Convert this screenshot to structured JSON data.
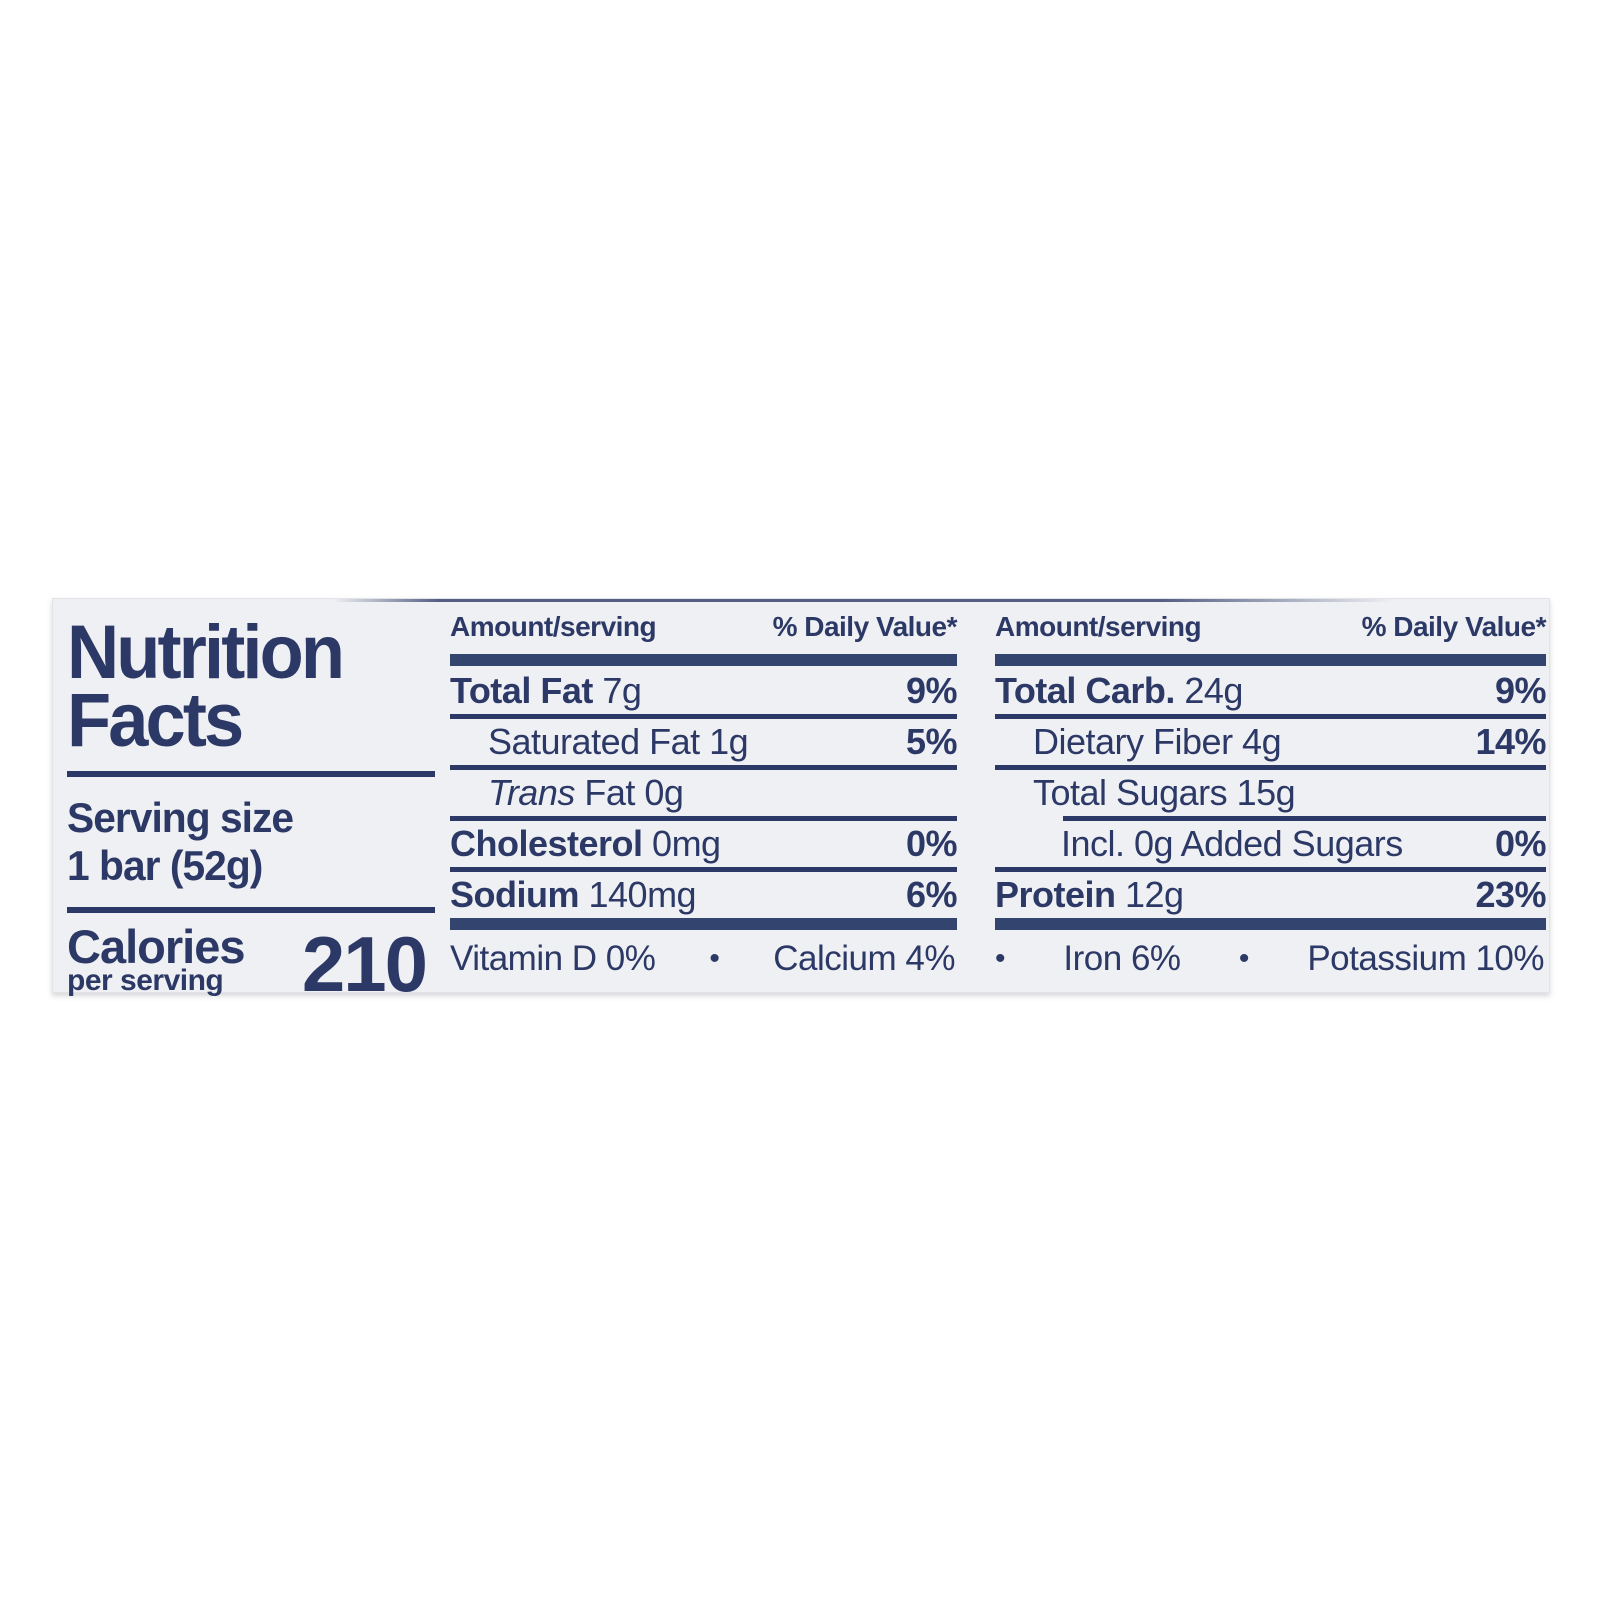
{
  "colors": {
    "text_navy": "#2c3966",
    "bar_navy": "#33456f",
    "panel_bg": "#eff0f3"
  },
  "left": {
    "title_line1": "Nutrition",
    "title_line2": "Facts",
    "serving_size_label": "Serving size",
    "serving_size_value": "1 bar (52g)",
    "calories_label": "Calories",
    "calories_sublabel": "per serving",
    "calories_value": "210"
  },
  "middle": {
    "header": {
      "amount": "Amount/serving",
      "dv": "% Daily Value*"
    },
    "rows": [
      {
        "bold": "Total Fat",
        "text": " 7g",
        "dv": "9%",
        "indent": 0
      },
      {
        "text": "Saturated Fat 1g",
        "dv": "5%",
        "indent": 1
      },
      {
        "italic": "Trans",
        "text": " Fat 0g",
        "dv": "",
        "indent": 1
      },
      {
        "bold": "Cholesterol",
        "text": " 0mg",
        "dv": "0%",
        "indent": 0
      },
      {
        "bold": "Sodium",
        "text": " 140mg",
        "dv": "6%",
        "indent": 0
      }
    ],
    "footer": {
      "leading_bullet": false,
      "items": [
        "Vitamin D 0%",
        "Calcium 4%"
      ]
    }
  },
  "right": {
    "header": {
      "amount": "Amount/serving",
      "dv": "% Daily Value*"
    },
    "rows": [
      {
        "bold": "Total Carb.",
        "text": " 24g",
        "dv": "9%",
        "indent": 0
      },
      {
        "text": "Dietary Fiber 4g",
        "dv": "14%",
        "indent": 1
      },
      {
        "text": "Total Sugars 15g",
        "dv": "",
        "indent": 1,
        "divider_indent": 68
      },
      {
        "text": "Incl. 0g Added Sugars",
        "dv": "0%",
        "indent": 2
      },
      {
        "bold": "Protein",
        "text": " 12g",
        "dv": "23%",
        "indent": 0
      }
    ],
    "footer": {
      "leading_bullet": true,
      "items": [
        "Iron 6%",
        "Potassium 10%"
      ]
    }
  }
}
